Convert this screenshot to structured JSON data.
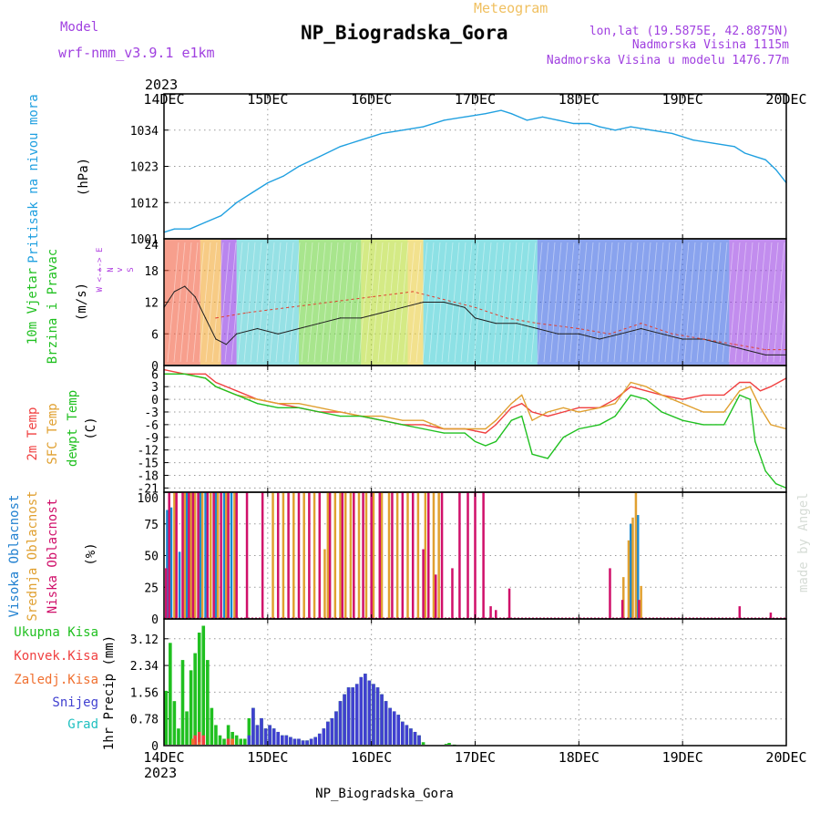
{
  "header": {
    "title": "NP_Biogradska_Gora",
    "subtitle": "Meteogram",
    "model_label": "Model",
    "model_name": "wrf-nmm_v3.9.1 e1km",
    "lonlat": "lon,lat (19.5875E, 42.8875N)",
    "elevation": "Nadmorska Visina 1115m",
    "model_elevation": "Nadmorska Visina u modelu 1476.77m",
    "footer": "NP_Biogradska_Gora",
    "credit": "made by Angel",
    "colors": {
      "title": "#000000",
      "meteogram": "#f0c060",
      "info": "#a040e0"
    }
  },
  "chart_data": [
    {
      "type": "line",
      "panel": "pressure",
      "ylabel_left": "Pritisak na nivou mora",
      "unit": "(hPa)",
      "xlim": [
        14,
        20
      ],
      "ylim": [
        1001,
        1045
      ],
      "yticks": [
        "1001",
        "1012",
        "1023",
        "1034"
      ],
      "xticks": [
        "14DEC",
        "15DEC",
        "16DEC",
        "17DEC",
        "18DEC",
        "19DEC",
        "20DEC"
      ],
      "year": "2023",
      "series": [
        {
          "color": "#20a0e0",
          "x": [
            14.0,
            14.1,
            14.25,
            14.4,
            14.55,
            14.7,
            14.85,
            15.0,
            15.15,
            15.3,
            15.5,
            15.7,
            15.9,
            16.1,
            16.3,
            16.5,
            16.7,
            16.9,
            17.1,
            17.25,
            17.35,
            17.5,
            17.65,
            17.8,
            17.95,
            18.1,
            18.2,
            18.35,
            18.5,
            18.7,
            18.9,
            19.1,
            19.3,
            19.5,
            19.6,
            19.7,
            19.8,
            19.9,
            20.0
          ],
          "y": [
            1003,
            1004,
            1004,
            1006,
            1008,
            1012,
            1015,
            1018,
            1020,
            1023,
            1026,
            1029,
            1031,
            1033,
            1034,
            1035,
            1037,
            1038,
            1039,
            1040,
            1039,
            1037,
            1038,
            1037,
            1036,
            1036,
            1035,
            1034,
            1035,
            1034,
            1033,
            1031,
            1030,
            1029,
            1027,
            1026,
            1025,
            1022,
            1018
          ]
        }
      ]
    },
    {
      "type": "line",
      "panel": "wind",
      "ylabel_left": "10m Vjetar",
      "ylabel_left2": "Brzina i Pravac",
      "unit": "(m/s)",
      "direction_legend": [
        "N",
        "^",
        "W <-+-> E",
        "v",
        "S"
      ],
      "ylim": [
        0,
        24
      ],
      "yticks": [
        "0",
        "6",
        "12",
        "18",
        "24"
      ],
      "series": [
        {
          "name": "speed",
          "color": "#202020",
          "x": [
            14.0,
            14.1,
            14.2,
            14.3,
            14.4,
            14.5,
            14.6,
            14.7,
            14.9,
            15.1,
            15.3,
            15.5,
            15.7,
            15.9,
            16.1,
            16.3,
            16.5,
            16.7,
            16.9,
            17.0,
            17.2,
            17.4,
            17.6,
            17.8,
            18.0,
            18.2,
            18.4,
            18.6,
            18.8,
            19.0,
            19.2,
            19.4,
            19.6,
            19.8,
            20.0
          ],
          "y": [
            11,
            14,
            15,
            13,
            9,
            5,
            4,
            6,
            7,
            6,
            7,
            8,
            9,
            9,
            10,
            11,
            12,
            12,
            11,
            9,
            8,
            8,
            7,
            6,
            6,
            5,
            6,
            7,
            6,
            5,
            5,
            4,
            3,
            2,
            2
          ]
        },
        {
          "name": "gust",
          "color": "#e04030",
          "x": [
            14.5,
            14.8,
            15.2,
            15.6,
            16.0,
            16.4,
            16.8,
            17.0,
            17.3,
            17.6,
            18.0,
            18.3,
            18.6,
            18.9,
            19.2,
            19.5,
            19.8,
            20.0
          ],
          "y": [
            9,
            10,
            11,
            12,
            13,
            14,
            12,
            11,
            9,
            8,
            7,
            6,
            8,
            6,
            5,
            4,
            3,
            3
          ]
        }
      ]
    },
    {
      "type": "line",
      "panel": "temperature",
      "ylabel_left": [
        "2m Temp",
        "SFC Temp",
        "dewpt Temp"
      ],
      "ylabel_colors": [
        "#f04040",
        "#e0a030",
        "#20c020"
      ],
      "unit": "(C)",
      "ylim": [
        -22,
        8
      ],
      "yticks": [
        "-21",
        "-18",
        "-15",
        "-12",
        "-9",
        "-6",
        "-3",
        "0",
        "3",
        "6"
      ],
      "series": [
        {
          "name": "2m Temp",
          "color": "#f04040",
          "x": [
            14.0,
            14.2,
            14.4,
            14.5,
            14.7,
            14.9,
            15.1,
            15.3,
            15.5,
            15.7,
            15.9,
            16.1,
            16.3,
            16.5,
            16.7,
            16.9,
            17.1,
            17.2,
            17.35,
            17.45,
            17.55,
            17.7,
            17.85,
            18.0,
            18.2,
            18.35,
            18.5,
            18.65,
            18.8,
            19.0,
            19.2,
            19.4,
            19.55,
            19.65,
            19.75,
            19.85,
            20.0
          ],
          "y": [
            7,
            6,
            6,
            4,
            2,
            0,
            -1,
            -2,
            -3,
            -3,
            -4,
            -5,
            -6,
            -6,
            -7,
            -7,
            -8,
            -6,
            -2,
            -1,
            -3,
            -4,
            -3,
            -2,
            -2,
            0,
            3,
            2,
            1,
            0,
            1,
            1,
            4,
            4,
            2,
            3,
            5
          ]
        },
        {
          "name": "SFC Temp",
          "color": "#e0a030",
          "x": [
            14.0,
            14.2,
            14.4,
            14.5,
            14.7,
            14.9,
            15.1,
            15.3,
            15.5,
            15.7,
            15.9,
            16.1,
            16.3,
            16.5,
            16.7,
            16.9,
            17.1,
            17.2,
            17.35,
            17.45,
            17.55,
            17.7,
            17.85,
            18.0,
            18.2,
            18.35,
            18.5,
            18.65,
            18.8,
            19.0,
            19.2,
            19.4,
            19.55,
            19.65,
            19.75,
            19.85,
            20.0
          ],
          "y": [
            6,
            6,
            5,
            3,
            1,
            0,
            -1,
            -1,
            -2,
            -3,
            -4,
            -4,
            -5,
            -5,
            -7,
            -7,
            -7,
            -5,
            -1,
            1,
            -5,
            -3,
            -2,
            -3,
            -2,
            -1,
            4,
            3,
            1,
            -1,
            -3,
            -3,
            2,
            3,
            -2,
            -6,
            -7
          ]
        },
        {
          "name": "dewpt Temp",
          "color": "#20c020",
          "x": [
            14.0,
            14.2,
            14.4,
            14.5,
            14.7,
            14.9,
            15.1,
            15.3,
            15.5,
            15.7,
            15.9,
            16.1,
            16.3,
            16.5,
            16.7,
            16.9,
            17.0,
            17.1,
            17.2,
            17.35,
            17.45,
            17.55,
            17.7,
            17.85,
            18.0,
            18.2,
            18.35,
            18.5,
            18.65,
            18.8,
            19.0,
            19.2,
            19.4,
            19.55,
            19.65,
            19.7,
            19.8,
            19.9,
            20.0
          ],
          "y": [
            6,
            6,
            5,
            3,
            1,
            -1,
            -2,
            -2,
            -3,
            -4,
            -4,
            -5,
            -6,
            -7,
            -8,
            -8,
            -10,
            -11,
            -10,
            -5,
            -4,
            -13,
            -14,
            -9,
            -7,
            -6,
            -4,
            1,
            0,
            -3,
            -5,
            -6,
            -6,
            1,
            0,
            -10,
            -17,
            -20,
            -21
          ]
        }
      ]
    },
    {
      "type": "bar",
      "panel": "cloud",
      "ylabel_left": [
        "Visoka Oblacnost",
        "Srednja Oblacnost",
        "Niska Oblacnost"
      ],
      "ylabel_colors": [
        "#2080d0",
        "#e0a030",
        "#d0106a"
      ],
      "unit": "(%)",
      "ylim": [
        0,
        100
      ],
      "yticks": [
        "0",
        "25",
        "50",
        "75",
        "100"
      ],
      "series": [
        {
          "name": "Visoka",
          "color": "#1888d0",
          "x": [
            14.03,
            14.07,
            14.15,
            14.22,
            14.35,
            14.4,
            14.5,
            14.58,
            14.65,
            18.5,
            18.57
          ],
          "y": [
            86,
            88,
            53,
            100,
            100,
            100,
            100,
            100,
            100,
            75,
            82
          ]
        },
        {
          "name": "Srednja",
          "color": "#e0a030",
          "x": [
            14.1,
            14.2,
            14.26,
            14.3,
            14.37,
            14.45,
            14.52,
            14.6,
            14.68,
            15.05,
            15.15,
            15.25,
            15.35,
            15.45,
            15.55,
            15.58,
            15.65,
            15.7,
            15.75,
            15.8,
            15.88,
            15.95,
            16.02,
            16.1,
            16.17,
            16.25,
            16.35,
            16.45,
            16.52,
            16.6,
            16.65,
            18.43,
            18.48,
            18.52,
            18.55,
            18.6
          ],
          "y": [
            100,
            100,
            100,
            100,
            100,
            100,
            100,
            100,
            100,
            100,
            100,
            100,
            100,
            100,
            55,
            100,
            100,
            100,
            100,
            100,
            100,
            100,
            100,
            100,
            100,
            100,
            100,
            100,
            100,
            100,
            100,
            33,
            62,
            80,
            100,
            26
          ]
        },
        {
          "name": "Niska",
          "color": "#d0106a",
          "x": [
            14.02,
            14.05,
            14.12,
            14.18,
            14.24,
            14.28,
            14.33,
            14.42,
            14.48,
            14.55,
            14.62,
            14.7,
            14.8,
            14.95,
            15.1,
            15.2,
            15.3,
            15.4,
            15.5,
            15.6,
            15.72,
            15.83,
            15.92,
            16.0,
            16.08,
            16.2,
            16.3,
            16.4,
            16.5,
            16.55,
            16.62,
            16.68,
            16.78,
            16.85,
            16.93,
            17.0,
            17.08,
            17.15,
            17.2,
            17.33,
            18.3,
            18.42,
            18.58,
            19.55,
            19.85
          ],
          "y": [
            40,
            100,
            100,
            100,
            100,
            100,
            100,
            100,
            100,
            100,
            100,
            100,
            100,
            100,
            100,
            100,
            100,
            100,
            100,
            100,
            100,
            100,
            100,
            100,
            100,
            100,
            100,
            100,
            55,
            100,
            35,
            100,
            40,
            100,
            100,
            100,
            100,
            10,
            7,
            24,
            40,
            15,
            15,
            10,
            5
          ]
        }
      ]
    },
    {
      "type": "bar",
      "panel": "precipitation",
      "legend": [
        "Ukupna Kisa",
        "Konvek.Kisa",
        "Zaledj.Kisa",
        "Snijeg",
        "Grad"
      ],
      "legend_colors": [
        "#20c020",
        "#f04040",
        "#f07030",
        "#4040d0",
        "#20c0c0"
      ],
      "ylabel": "1hr Precip (mm)",
      "ylim": [
        0,
        3.7
      ],
      "yticks": [
        "0",
        "0.78",
        "1.56",
        "2.34",
        "3.12"
      ],
      "xticks_bottom": [
        "14DEC",
        "15DEC",
        "16DEC",
        "17DEC",
        "18DEC",
        "19DEC",
        "20DEC"
      ],
      "year_bottom": "2023",
      "series": [
        {
          "name": "Ukupna Kisa",
          "color": "#20c020",
          "x": [
            14.02,
            14.06,
            14.1,
            14.14,
            14.18,
            14.22,
            14.26,
            14.3,
            14.34,
            14.38,
            14.42,
            14.46,
            14.5,
            14.54,
            14.58,
            14.62,
            14.66,
            14.7,
            14.74,
            14.78,
            14.82,
            14.86,
            14.9,
            14.94,
            14.98,
            15.02,
            15.06,
            15.1,
            15.14,
            15.18,
            15.22,
            15.26,
            15.3,
            15.34,
            15.38,
            15.42,
            15.46,
            15.5,
            15.54,
            15.58,
            15.62,
            15.66,
            15.7,
            15.74,
            15.78,
            15.82,
            15.86,
            15.9,
            15.94,
            15.98,
            16.02,
            16.06,
            16.1,
            16.14,
            16.18,
            16.22,
            16.26,
            16.3,
            16.34,
            16.38,
            16.42,
            16.46,
            16.5,
            16.72,
            16.75,
            16.8
          ],
          "y": [
            1.6,
            3.0,
            1.3,
            0.5,
            2.5,
            1.0,
            2.2,
            2.7,
            3.3,
            3.5,
            2.5,
            1.1,
            0.6,
            0.3,
            0.2,
            0.6,
            0.4,
            0.3,
            0.2,
            0.2,
            0.8,
            1.1,
            0.6,
            0.8,
            0.5,
            0.6,
            0.5,
            0.4,
            0.3,
            0.3,
            0.25,
            0.2,
            0.2,
            0.15,
            0.15,
            0.2,
            0.25,
            0.35,
            0.5,
            0.7,
            0.8,
            1.0,
            1.3,
            1.5,
            1.7,
            1.7,
            1.8,
            2.0,
            2.1,
            1.9,
            1.8,
            1.7,
            1.5,
            1.3,
            1.1,
            1.0,
            0.9,
            0.7,
            0.6,
            0.5,
            0.4,
            0.3,
            0.1,
            0.05,
            0.08,
            0.03
          ]
        },
        {
          "name": "Konvek.Kisa",
          "color": "#f04040",
          "x": [
            14.3,
            14.34,
            14.38,
            14.62,
            14.66
          ],
          "y": [
            0.3,
            0.4,
            0.3,
            0.2,
            0.15
          ]
        },
        {
          "name": "Zaledj.Kisa",
          "color": "#f07030",
          "x": [
            14.28,
            14.34,
            14.66
          ],
          "y": [
            0.2,
            0.1,
            0.2
          ]
        },
        {
          "name": "Snijeg",
          "color": "#4040d0",
          "x": [
            14.82,
            14.86,
            14.9,
            14.94,
            14.98,
            15.02,
            15.06,
            15.1,
            15.14,
            15.18,
            15.22,
            15.26,
            15.3,
            15.34,
            15.38,
            15.42,
            15.46,
            15.5,
            15.54,
            15.58,
            15.62,
            15.66,
            15.7,
            15.74,
            15.78,
            15.82,
            15.86,
            15.9,
            15.94,
            15.98,
            16.02,
            16.06,
            16.1,
            16.14,
            16.18,
            16.22,
            16.26,
            16.3,
            16.34,
            16.38,
            16.42,
            16.46
          ],
          "y": [
            0.3,
            1.1,
            0.6,
            0.8,
            0.5,
            0.6,
            0.5,
            0.4,
            0.3,
            0.3,
            0.25,
            0.2,
            0.2,
            0.15,
            0.15,
            0.2,
            0.25,
            0.35,
            0.5,
            0.7,
            0.8,
            1.0,
            1.3,
            1.5,
            1.7,
            1.7,
            1.8,
            2.0,
            2.1,
            1.9,
            1.8,
            1.7,
            1.5,
            1.3,
            1.1,
            1.0,
            0.9,
            0.7,
            0.6,
            0.5,
            0.4,
            0.3
          ]
        }
      ]
    }
  ]
}
